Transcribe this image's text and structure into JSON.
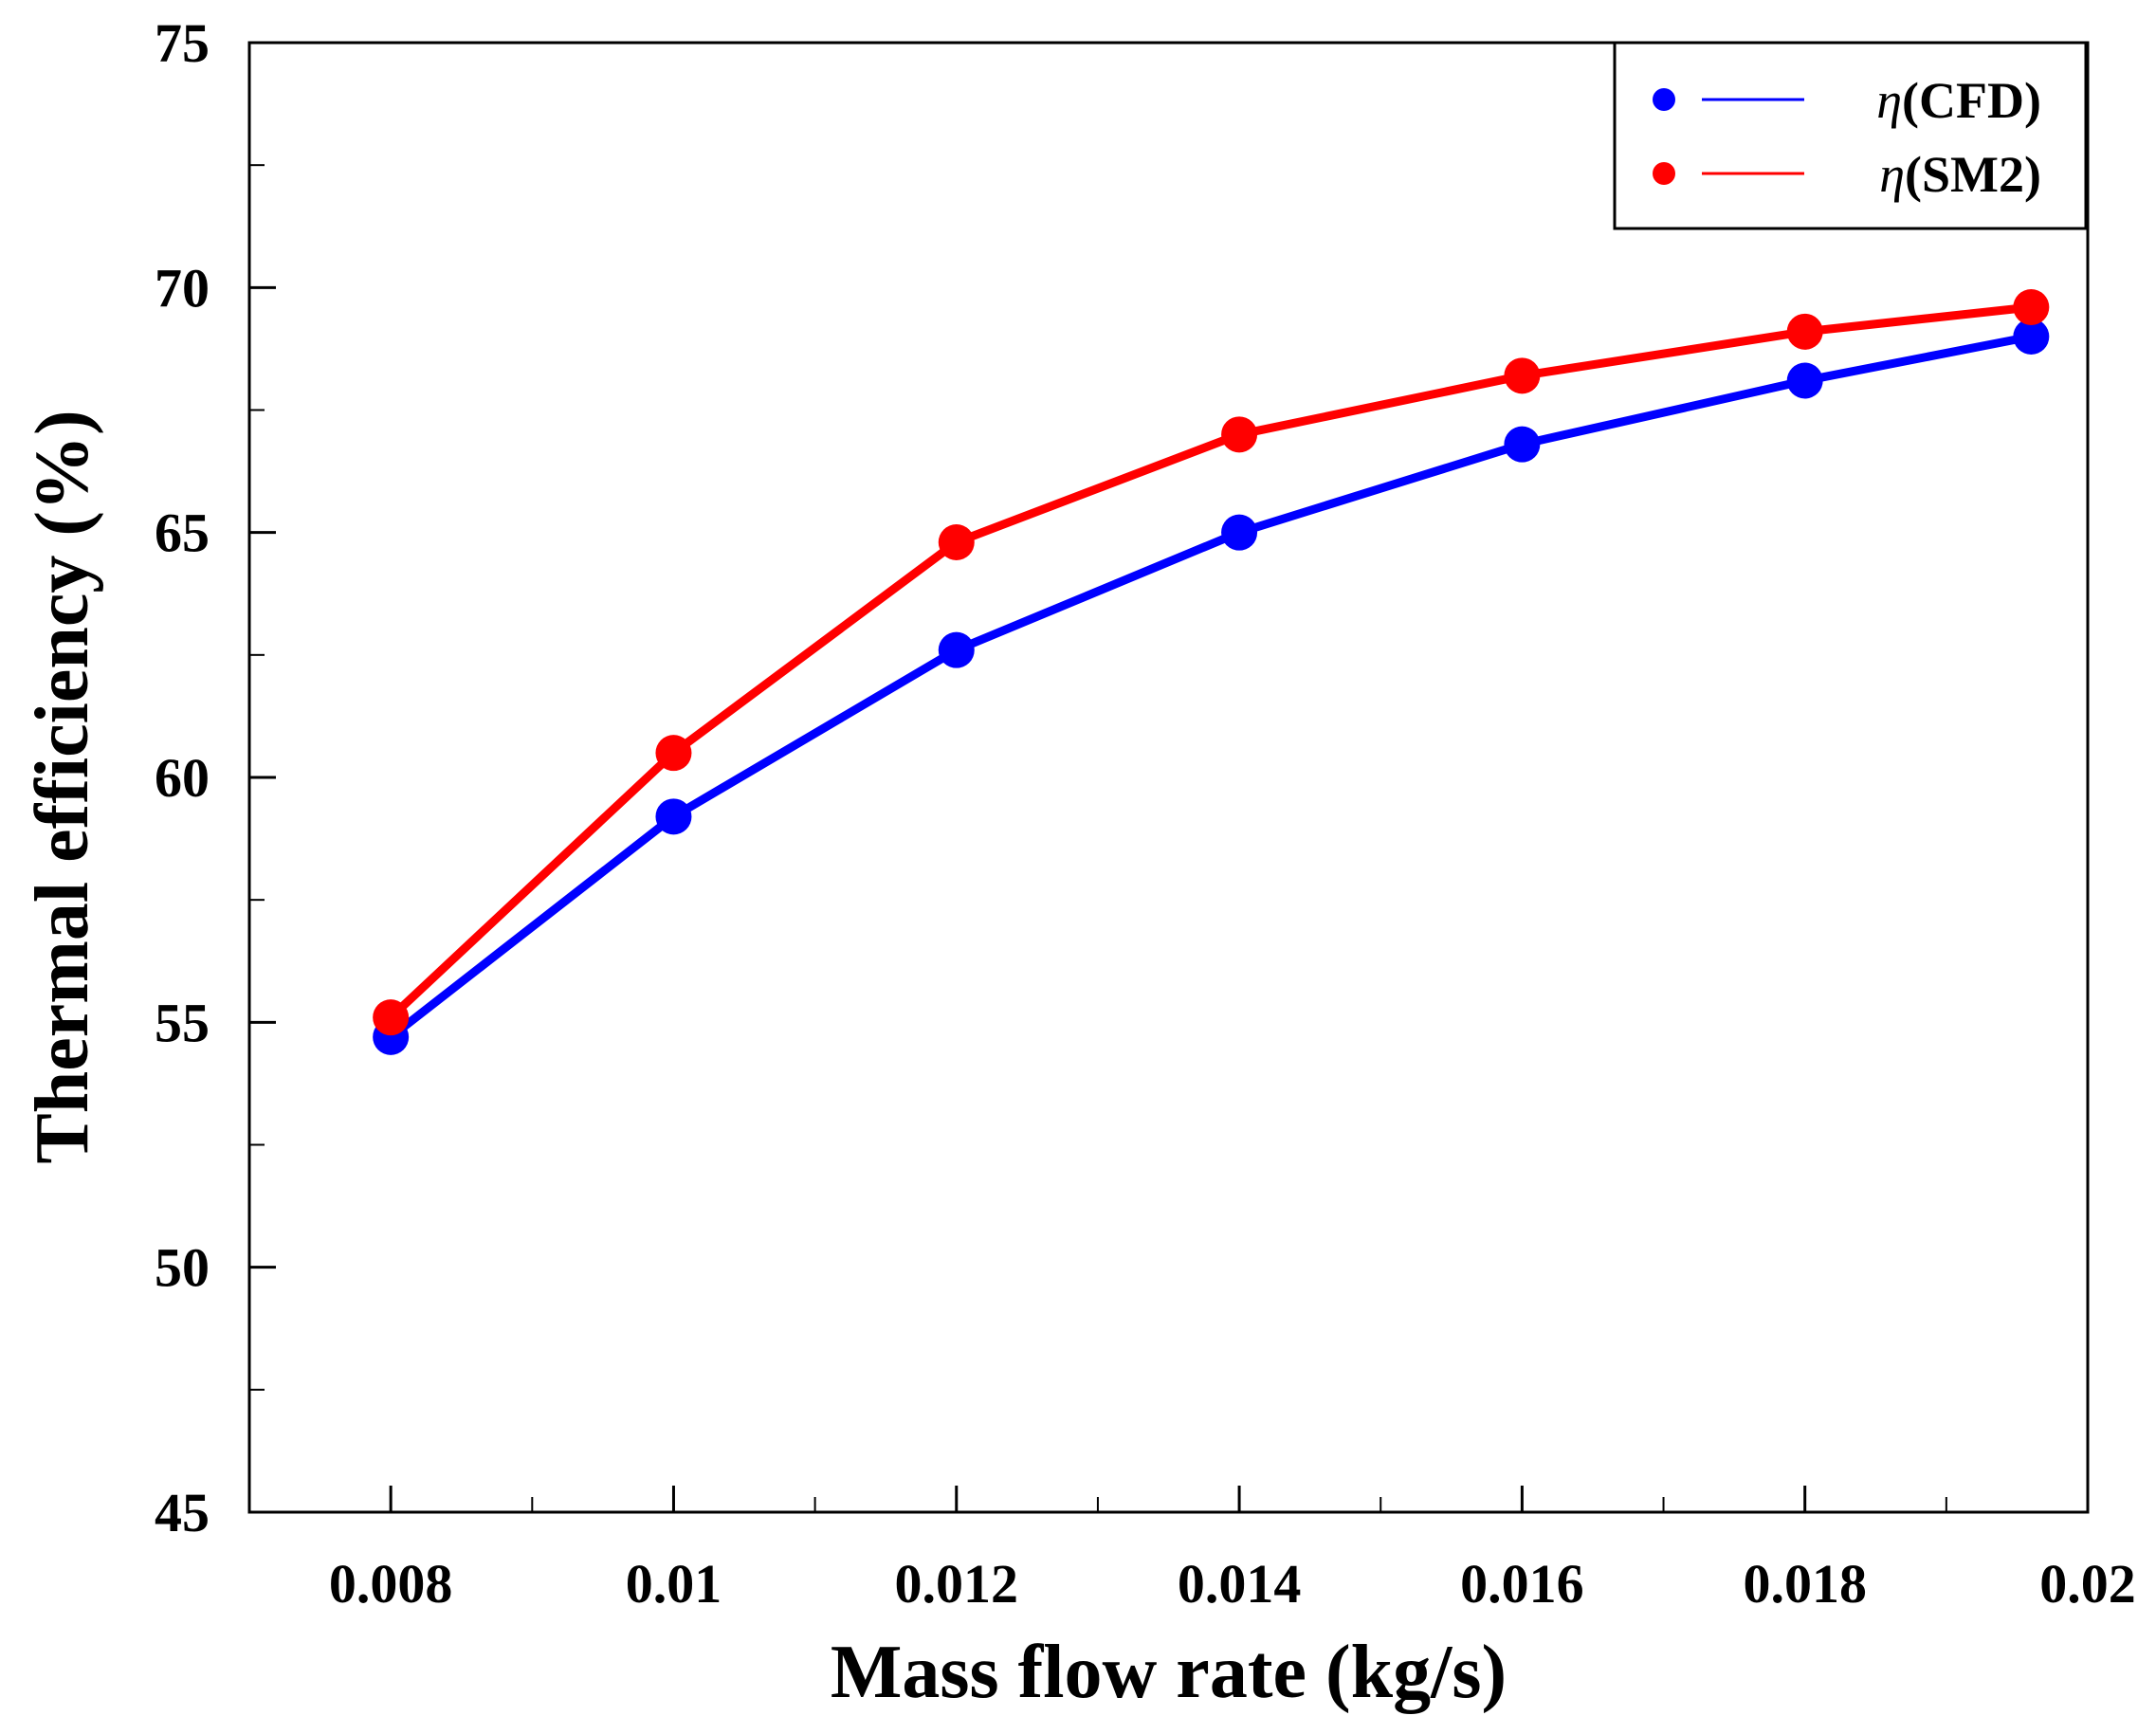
{
  "chart_data": {
    "type": "line",
    "title": "",
    "xlabel": "Mass flow rate (kg/s)",
    "ylabel": "Thermal efficiency (%)",
    "xlim": [
      0.007,
      0.02
    ],
    "ylim": [
      45,
      75
    ],
    "x_ticks": [
      0.008,
      0.01,
      0.012,
      0.014,
      0.016,
      0.018,
      0.02
    ],
    "x_tick_labels": [
      "0.008",
      "0.01",
      "0.012",
      "0.014",
      "0.016",
      "0.018",
      "0.02"
    ],
    "x_minor_ticks": [
      0.009,
      0.011,
      0.013,
      0.015,
      0.017,
      0.019
    ],
    "y_ticks": [
      45,
      50,
      55,
      60,
      65,
      70,
      75
    ],
    "y_tick_labels": [
      "45",
      "50",
      "55",
      "60",
      "65",
      "70",
      "75"
    ],
    "y_minor_ticks": [
      47.5,
      52.5,
      57.5,
      62.5,
      67.5,
      72.5
    ],
    "grid": false,
    "legend_position": "top-right",
    "series": [
      {
        "name": "η(CFD)",
        "legend_symbol": "η",
        "legend_text": "(CFD)",
        "color": "#0000ff",
        "x": [
          0.008,
          0.01,
          0.012,
          0.014,
          0.016,
          0.018,
          0.0196
        ],
        "y": [
          54.7,
          59.2,
          62.6,
          65.0,
          66.8,
          68.1,
          69.0
        ]
      },
      {
        "name": "η(SM2)",
        "legend_symbol": "η",
        "legend_text": "(SM2)",
        "color": "#ff0000",
        "x": [
          0.008,
          0.01,
          0.012,
          0.014,
          0.016,
          0.018,
          0.0196
        ],
        "y": [
          55.1,
          60.5,
          64.8,
          67.0,
          68.2,
          69.1,
          69.6
        ]
      }
    ]
  }
}
